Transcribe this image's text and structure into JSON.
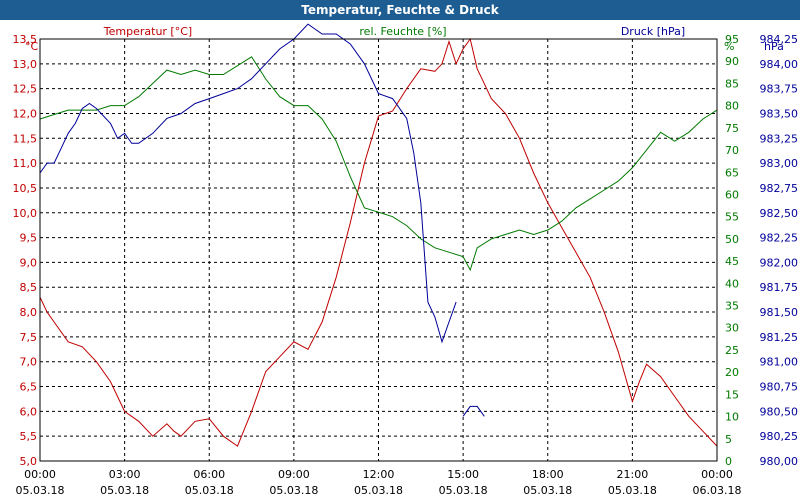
{
  "title": "Temperatur, Feuchte & Druck",
  "colors": {
    "title_bar": "#1e5d91",
    "temperature": "#c00000",
    "humidity": "#007a00",
    "pressure": "#000099",
    "grid": "#000000"
  },
  "chart_data": {
    "type": "line",
    "title": "Temperatur, Feuchte & Druck",
    "grid": true,
    "x_time_labels": [
      "00:00",
      "03:00",
      "06:00",
      "09:00",
      "12:00",
      "15:00",
      "18:00",
      "21:00",
      "00:00"
    ],
    "x_date_labels": [
      "05.03.18",
      "05.03.18",
      "05.03.18",
      "05.03.18",
      "05.03.18",
      "05.03.18",
      "05.03.18",
      "05.03.18",
      "06.03.18"
    ],
    "x_ticks_hours": [
      0,
      3,
      6,
      9,
      12,
      15,
      18,
      21,
      24
    ],
    "axes": {
      "temperature": {
        "label": "Temperatur [°C]",
        "unit": "°C",
        "ylim": [
          5.0,
          13.5
        ],
        "ticks": [
          "5,0",
          "5,5",
          "6,0",
          "6,5",
          "7,0",
          "7,5",
          "8,0",
          "8,5",
          "9,0",
          "9,5",
          "10,0",
          "10,5",
          "11,0",
          "11,5",
          "12,0",
          "12,5",
          "13,0",
          "13,5"
        ]
      },
      "humidity": {
        "label": "rel. Feuchte [%]",
        "unit": "%",
        "ylim": [
          0,
          95
        ],
        "ticks": [
          "0",
          "5",
          "10",
          "15",
          "20",
          "25",
          "30",
          "35",
          "40",
          "45",
          "50",
          "55",
          "60",
          "65",
          "70",
          "75",
          "80",
          "85",
          "90",
          "95"
        ]
      },
      "pressure": {
        "label": "Druck [hPa]",
        "unit": "hPa",
        "ylim": [
          980.0,
          984.25
        ],
        "ticks": [
          "980,00",
          "980,25",
          "980,50",
          "980,75",
          "981,00",
          "981,25",
          "981,50",
          "981,75",
          "982,00",
          "982,25",
          "982,50",
          "982,75",
          "983,00",
          "983,25",
          "983,50",
          "983,75",
          "984,00",
          "984,25"
        ]
      }
    },
    "series": [
      {
        "name": "Temperatur [°C]",
        "axis": "temperature",
        "x": [
          0,
          0.25,
          0.5,
          1.0,
          1.5,
          2.0,
          2.5,
          3.0,
          3.5,
          4.0,
          4.5,
          4.75,
          5.0,
          5.5,
          6.0,
          6.5,
          7.0,
          7.5,
          8.0,
          8.5,
          9.0,
          9.5,
          10.0,
          10.5,
          11.0,
          11.5,
          12.0,
          12.5,
          13.0,
          13.5,
          14.0,
          14.25,
          14.5,
          14.75,
          15.0,
          15.25,
          15.5,
          15.75,
          16.0,
          16.5,
          17.0,
          17.5,
          18.0,
          18.5,
          19.0,
          19.5,
          20.0,
          20.5,
          21.0,
          21.25,
          21.5,
          22.0,
          22.5,
          23.0,
          23.5,
          24.0
        ],
        "values": [
          8.3,
          8.0,
          7.8,
          7.4,
          7.3,
          7.0,
          6.6,
          6.0,
          5.8,
          5.5,
          5.75,
          5.6,
          5.5,
          5.8,
          5.85,
          5.5,
          5.3,
          6.0,
          6.8,
          7.1,
          7.4,
          7.25,
          7.8,
          8.7,
          9.8,
          11.0,
          11.95,
          12.05,
          12.5,
          12.9,
          12.85,
          13.0,
          13.45,
          13.0,
          13.3,
          13.5,
          12.9,
          12.6,
          12.3,
          12.0,
          11.5,
          10.8,
          10.2,
          9.7,
          9.2,
          8.7,
          8.0,
          7.2,
          6.2,
          6.6,
          6.95,
          6.7,
          6.3,
          5.9,
          5.6,
          5.3
        ]
      },
      {
        "name": "rel. Feuchte [%]",
        "axis": "humidity",
        "x": [
          0,
          0.5,
          1.0,
          1.5,
          2.0,
          2.5,
          3.0,
          3.5,
          4.0,
          4.5,
          5.0,
          5.5,
          6.0,
          6.5,
          7.0,
          7.5,
          8.0,
          8.5,
          9.0,
          9.5,
          10.0,
          10.5,
          11.0,
          11.5,
          12.0,
          12.5,
          13.0,
          13.5,
          14.0,
          14.5,
          15.0,
          15.25,
          15.5,
          16.0,
          16.5,
          17.0,
          17.5,
          18.0,
          18.5,
          19.0,
          19.5,
          20.0,
          20.5,
          21.0,
          21.5,
          22.0,
          22.5,
          23.0,
          23.5,
          24.0
        ],
        "values": [
          77,
          78,
          79,
          79,
          79,
          80,
          80,
          82,
          85,
          88,
          87,
          88,
          87,
          87,
          89,
          91,
          86,
          82,
          80,
          80,
          77,
          72,
          64,
          57,
          56,
          55,
          53,
          50,
          48,
          47,
          46,
          43,
          48,
          50,
          51,
          52,
          51,
          52,
          54,
          57,
          59,
          61,
          63,
          66,
          70,
          74,
          72,
          74,
          77,
          79
        ]
      },
      {
        "name": "Druck [hPa]",
        "axis": "pressure",
        "segments": [
          {
            "x": [
              0,
              0.25,
              0.5,
              0.75,
              1.0,
              1.25,
              1.5,
              1.75,
              2.0,
              2.5,
              2.75,
              3.0,
              3.25,
              3.5,
              4.0,
              4.5,
              5.0,
              5.5,
              6.0,
              6.5,
              7.0,
              7.5,
              8.0,
              8.5,
              9.0,
              9.5,
              10.0,
              10.5,
              11.0,
              11.5,
              12.0,
              12.5,
              13.0,
              13.25,
              13.5,
              13.75,
              14.0,
              14.25,
              14.5,
              14.75
            ],
            "values": [
              982.9,
              983.0,
              983.0,
              983.15,
              983.3,
              983.4,
              983.55,
              983.6,
              983.55,
              983.4,
              983.25,
              983.3,
              983.2,
              983.2,
              983.3,
              983.45,
              983.5,
              983.6,
              983.65,
              983.7,
              983.75,
              983.85,
              984.0,
              984.15,
              984.25,
              984.4,
              984.3,
              984.3,
              984.2,
              984.0,
              983.7,
              983.65,
              983.45,
              983.1,
              982.6,
              981.6,
              981.45,
              981.2,
              981.4,
              981.6
            ]
          },
          {
            "x": [
              15.0,
              15.25,
              15.5,
              15.75
            ],
            "values": [
              980.45,
              980.55,
              980.55,
              980.45
            ]
          }
        ]
      }
    ]
  }
}
